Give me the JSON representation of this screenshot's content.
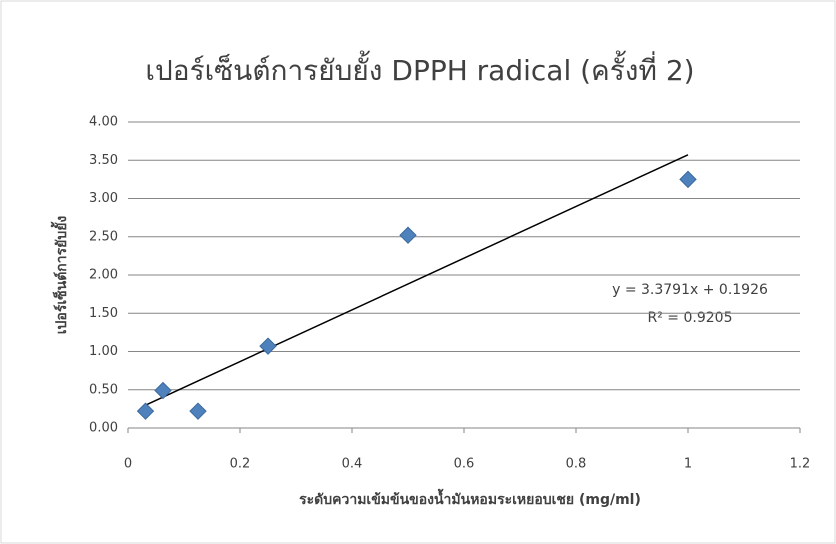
{
  "chart_data": {
    "type": "scatter",
    "title": "เปอร์เซ็นต์การยับยั้ง DPPH radical (ครั้งที่ 2)",
    "x_label": "ระดับความเข้มข้นของน้ำมันหอมระเหยอบเชย (mg/ml)",
    "y_label": "เปอร์เซ็นต์การยับยั้ง",
    "x": [
      0.03125,
      0.0625,
      0.125,
      0.25,
      0.5,
      1
    ],
    "series": [
      {
        "color": "#4f81bd",
        "values": [
          0.22,
          0.49,
          0.22,
          1.07,
          2.52,
          3.25
        ]
      }
    ],
    "trendline": {
      "slope": 3.3791,
      "intercept": 0.1926,
      "equation": "y = 3.3791x + 0.1926",
      "r2": 0.9205,
      "r2_label": "R² = 0.9205"
    },
    "xlim": [
      0,
      1.2
    ],
    "xticks": [
      0,
      0.2,
      0.4,
      0.6,
      0.8,
      1,
      1.2
    ],
    "ylim": [
      0,
      4
    ],
    "yticks": [
      {
        "value": 0,
        "label": "0.00"
      },
      {
        "value": 0.5,
        "label": "0.50"
      },
      {
        "value": 1,
        "label": "1.00"
      },
      {
        "value": 1.5,
        "label": "1.50"
      },
      {
        "value": 2,
        "label": "2.00"
      },
      {
        "value": 2.5,
        "label": "2.50"
      },
      {
        "value": 3,
        "label": "3.00"
      },
      {
        "value": 3.5,
        "label": "3.50"
      },
      {
        "value": 4,
        "label": "4.00"
      }
    ],
    "grid": true
  }
}
